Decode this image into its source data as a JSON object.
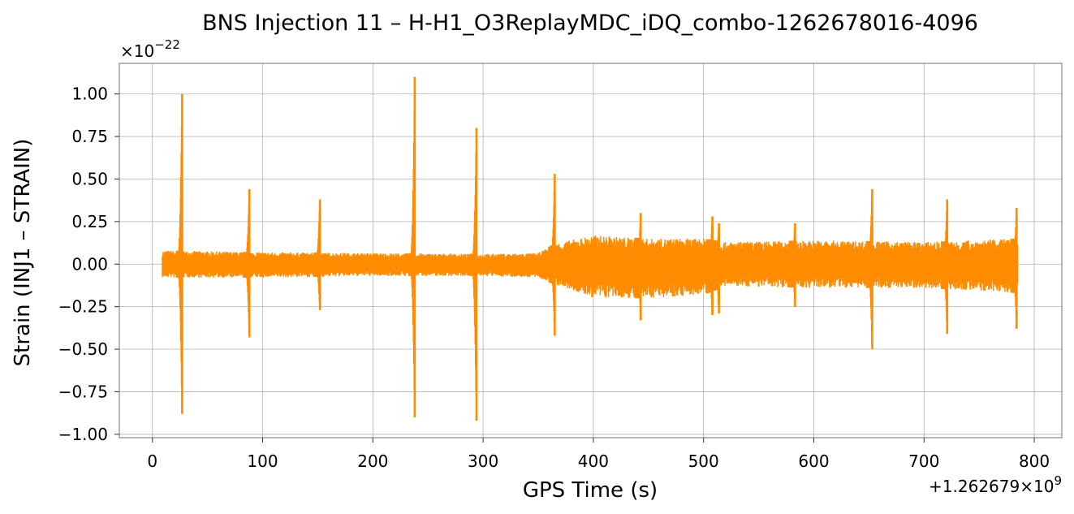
{
  "chart_data": {
    "type": "line",
    "title": "BNS Injection 11 – H-H1_O3ReplayMDC_iDQ_combo-1262678016-4096",
    "xlabel": "GPS Time (s)",
    "ylabel": "Strain (INJ1 – STRAIN)",
    "y_multiplier": "×10−22",
    "x_offset": "+1.262679×109",
    "xlim": [
      -30,
      825
    ],
    "ylim": [
      -1.02,
      1.18
    ],
    "x_ticks": [
      0,
      100,
      200,
      300,
      400,
      500,
      600,
      700,
      800
    ],
    "x_tick_labels": [
      "0",
      "100",
      "200",
      "300",
      "400",
      "500",
      "600",
      "700",
      "800"
    ],
    "y_ticks": [
      -1.0,
      -0.75,
      -0.5,
      -0.25,
      0.0,
      0.25,
      0.5,
      0.75,
      1.0
    ],
    "y_tick_labels": [
      "−1.00",
      "−0.75",
      "−0.50",
      "−0.25",
      "0.00",
      "0.25",
      "0.50",
      "0.75",
      "1.00"
    ],
    "grid": true,
    "series": [
      {
        "color": "#ff8c00",
        "x_range": [
          9,
          785
        ],
        "noise_envelope": {
          "x": [
            9,
            100,
            200,
            300,
            350,
            365,
            400,
            450,
            500,
            520,
            600,
            700,
            785
          ],
          "upper": [
            0.08,
            0.07,
            0.065,
            0.06,
            0.065,
            0.12,
            0.17,
            0.15,
            0.15,
            0.13,
            0.14,
            0.13,
            0.15
          ],
          "lower": [
            -0.08,
            -0.08,
            -0.07,
            -0.07,
            -0.08,
            -0.12,
            -0.2,
            -0.2,
            -0.18,
            -0.13,
            -0.14,
            -0.14,
            -0.17
          ]
        },
        "spikes": [
          {
            "x": 27,
            "max": 1.0,
            "min": -0.88
          },
          {
            "x": 88,
            "max": 0.44,
            "min": -0.43
          },
          {
            "x": 152,
            "max": 0.38,
            "min": -0.27
          },
          {
            "x": 238,
            "max": 1.1,
            "min": -0.9
          },
          {
            "x": 294,
            "max": 0.8,
            "min": -0.92
          },
          {
            "x": 365,
            "max": 0.53,
            "min": -0.42
          },
          {
            "x": 443,
            "max": 0.3,
            "min": -0.33
          },
          {
            "x": 508,
            "max": 0.28,
            "min": -0.3
          },
          {
            "x": 514,
            "max": 0.24,
            "min": -0.29
          },
          {
            "x": 583,
            "max": 0.24,
            "min": -0.25
          },
          {
            "x": 653,
            "max": 0.44,
            "min": -0.5
          },
          {
            "x": 721,
            "max": 0.38,
            "min": -0.41
          },
          {
            "x": 784,
            "max": 0.33,
            "min": -0.38
          }
        ]
      }
    ]
  }
}
